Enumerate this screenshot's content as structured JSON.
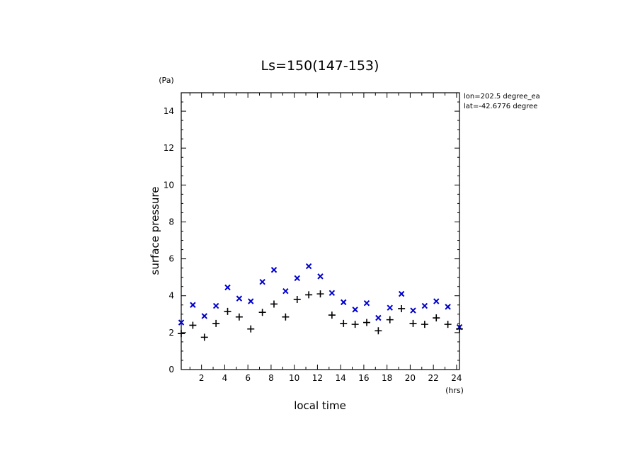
{
  "chart_data": {
    "type": "scatter",
    "title": "Ls=150(147-153)",
    "xlabel": "local time",
    "ylabel": "surface pressure",
    "x_unit": "(hrs)",
    "y_unit": "(Pa)",
    "xlim": [
      0.25,
      24.25
    ],
    "ylim": [
      0,
      15
    ],
    "x_ticks": [
      2,
      4,
      6,
      8,
      10,
      12,
      14,
      16,
      18,
      20,
      22,
      24
    ],
    "y_ticks": [
      0,
      2,
      4,
      6,
      8,
      10,
      12,
      14
    ],
    "grid": false,
    "annotations": [
      "lon=202.5 degree_ea",
      "lat=-42.6776 degree"
    ],
    "series": [
      {
        "marker": "x",
        "color": "#0000cc",
        "x": [
          0.25,
          1.25,
          2.25,
          3.25,
          4.25,
          5.25,
          6.25,
          7.25,
          8.25,
          9.25,
          10.25,
          11.25,
          12.25,
          13.25,
          14.25,
          15.25,
          16.25,
          17.25,
          18.25,
          19.25,
          20.25,
          21.25,
          22.25,
          23.25,
          24.25
        ],
        "y": [
          2.55,
          3.5,
          2.9,
          3.45,
          4.45,
          3.85,
          3.7,
          4.75,
          5.4,
          4.25,
          4.95,
          5.6,
          5.05,
          4.15,
          3.65,
          3.25,
          3.6,
          2.8,
          3.35,
          4.1,
          3.2,
          3.45,
          3.7,
          3.4,
          2.3
        ]
      },
      {
        "marker": "+",
        "color": "#000000",
        "x": [
          0.25,
          1.25,
          2.25,
          3.25,
          4.25,
          5.25,
          6.25,
          7.25,
          8.25,
          9.25,
          10.25,
          11.25,
          12.25,
          13.25,
          14.25,
          15.25,
          16.25,
          17.25,
          18.25,
          19.25,
          20.25,
          21.25,
          22.25,
          23.25,
          24.25
        ],
        "y": [
          1.95,
          2.4,
          1.75,
          2.5,
          3.15,
          2.85,
          2.2,
          3.1,
          3.55,
          2.85,
          3.8,
          4.05,
          4.1,
          2.95,
          2.5,
          2.45,
          2.55,
          2.1,
          2.7,
          3.3,
          2.5,
          2.45,
          2.8,
          2.45,
          2.2
        ]
      }
    ]
  }
}
